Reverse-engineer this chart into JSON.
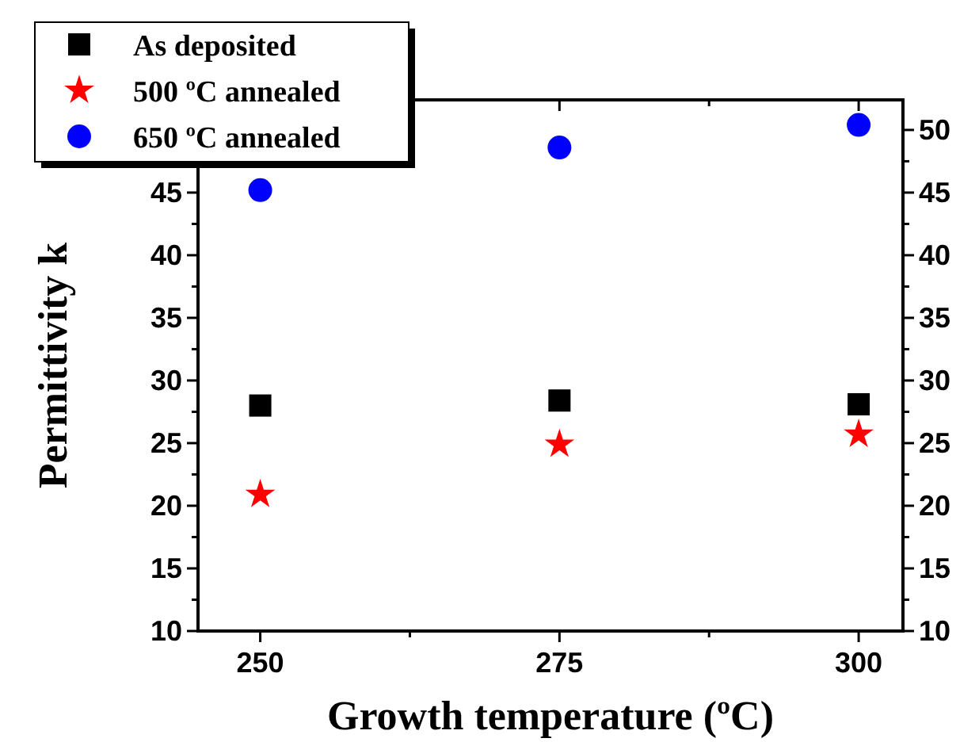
{
  "chart_data": {
    "type": "scatter",
    "xlabel": "Growth temperature (ºC)",
    "ylabel": "Permittivity k",
    "x": [
      250,
      275,
      300
    ],
    "series": [
      {
        "name": "As deposited",
        "color": "#000000",
        "marker": "square",
        "values": [
          28.0,
          28.4,
          28.1
        ]
      },
      {
        "name": "500 ºC annealed",
        "color": "#ff0000",
        "marker": "star",
        "values": [
          20.9,
          24.9,
          25.7
        ]
      },
      {
        "name": "650 ºC annealed",
        "color": "#0000ff",
        "marker": "circle",
        "values": [
          45.2,
          48.6,
          50.4
        ]
      }
    ],
    "xlim": [
      244.8,
      303.7
    ],
    "xticks": [
      250,
      {
        "value": 262.5,
        "label": null
      },
      275,
      {
        "value": 287.5,
        "label": null
      },
      300
    ],
    "ylim": [
      10,
      52.4
    ],
    "yticks": [
      10,
      {
        "value": 12.5,
        "label": null
      },
      15,
      {
        "value": 17.5,
        "label": null
      },
      20,
      {
        "value": 22.5,
        "label": null
      },
      25,
      {
        "value": 27.5,
        "label": null
      },
      30,
      {
        "value": 32.5,
        "label": null
      },
      35,
      {
        "value": 37.5,
        "label": null
      },
      40,
      {
        "value": 42.5,
        "label": null
      },
      45,
      {
        "value": 47.5,
        "label": null
      },
      {
        "value": 50,
        "label": null
      }
    ],
    "y2lim": [
      10,
      52.4
    ],
    "y2ticks": [
      10,
      {
        "value": 12.5,
        "label": null
      },
      15,
      {
        "value": 17.5,
        "label": null
      },
      20,
      {
        "value": 22.5,
        "label": null
      },
      25,
      {
        "value": 27.5,
        "label": null
      },
      30,
      {
        "value": 32.5,
        "label": null
      },
      35,
      {
        "value": 37.5,
        "label": null
      },
      40,
      {
        "value": 42.5,
        "label": null
      },
      45,
      {
        "value": 47.5,
        "label": null
      },
      50
    ],
    "legend": "top left",
    "grid": false
  }
}
